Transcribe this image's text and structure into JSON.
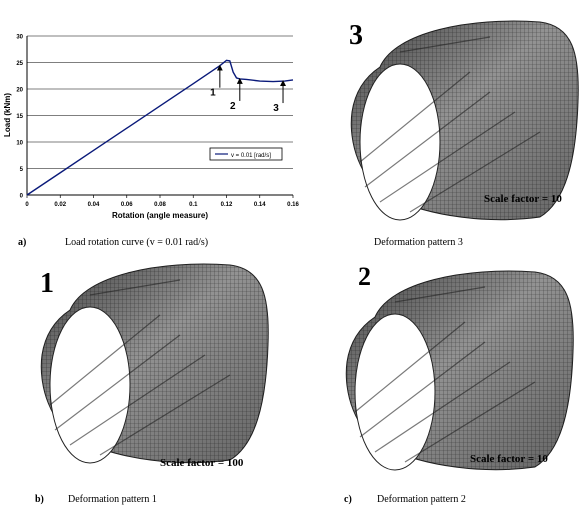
{
  "chart_data": {
    "type": "line",
    "ylabel": "Load (kNm)",
    "xlabel": "Rotation (angle measure)",
    "xlim": [
      0,
      0.16
    ],
    "ylim": [
      0,
      30
    ],
    "x_ticks": [
      "0",
      "0.02",
      "0.04",
      "0.06",
      "0.08",
      "0.1",
      "0.12",
      "0.14",
      "0.16"
    ],
    "y_ticks": [
      "0",
      "5",
      "10",
      "15",
      "20",
      "25",
      "30"
    ],
    "grid": "horizontal",
    "legend_position": "right",
    "series": [
      {
        "name": "v = 0.01 [rad/s]",
        "color": "#0a1a7a",
        "points": [
          [
            0,
            0
          ],
          [
            0.02,
            4.2
          ],
          [
            0.04,
            8.4
          ],
          [
            0.06,
            12.6
          ],
          [
            0.08,
            16.8
          ],
          [
            0.1,
            21.0
          ],
          [
            0.116,
            24.4
          ],
          [
            0.12,
            25.4
          ],
          [
            0.122,
            25.3
          ],
          [
            0.124,
            23.2
          ],
          [
            0.126,
            22.1
          ],
          [
            0.128,
            21.9
          ],
          [
            0.132,
            21.8
          ],
          [
            0.14,
            21.5
          ],
          [
            0.148,
            21.4
          ],
          [
            0.155,
            21.5
          ],
          [
            0.16,
            21.7
          ]
        ]
      }
    ],
    "annotations": [
      {
        "label": "1",
        "x": 0.116,
        "y": 24.4
      },
      {
        "label": "2",
        "x": 0.128,
        "y": 21.9
      },
      {
        "label": "3",
        "x": 0.154,
        "y": 21.5
      }
    ]
  },
  "panels": {
    "a_label": "a)",
    "a_caption": "Load rotation curve (v = 0.01 rad/s)",
    "p3_caption": "Deformation pattern 3",
    "b_label": "b)",
    "b_caption": "Deformation pattern 1",
    "c_label": "c)",
    "c_caption": "Deformation pattern 2",
    "p1_number": "1",
    "p2_number": "2",
    "p3_number": "3",
    "p1_scale": "Scale factor = 100",
    "p2_scale": "Scale factor = 10",
    "p3_scale": "Scale factor = 10"
  }
}
